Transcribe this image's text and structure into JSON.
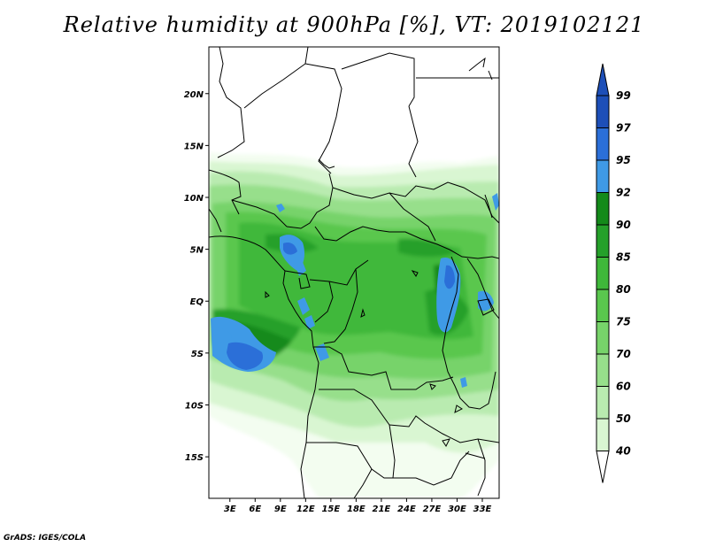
{
  "title": "Relative humidity at 900hPa [%], VT: 2019102121",
  "credit": "GrADS: IGES/COLA",
  "map": {
    "lat_labels": [
      {
        "lat": 20,
        "label": "20N"
      },
      {
        "lat": 15,
        "label": "15N"
      },
      {
        "lat": 10,
        "label": "10N"
      },
      {
        "lat": 5,
        "label": "5N"
      },
      {
        "lat": 0,
        "label": "EQ"
      },
      {
        "lat": -5,
        "label": "5S"
      },
      {
        "lat": -10,
        "label": "10S"
      },
      {
        "lat": -15,
        "label": "15S"
      }
    ],
    "lon_labels": [
      {
        "lon": 3,
        "label": "3E"
      },
      {
        "lon": 6,
        "label": "6E"
      },
      {
        "lon": 9,
        "label": "9E"
      },
      {
        "lon": 12,
        "label": "12E"
      },
      {
        "lon": 15,
        "label": "15E"
      },
      {
        "lon": 18,
        "label": "18E"
      },
      {
        "lon": 21,
        "label": "21E"
      },
      {
        "lon": 24,
        "label": "24E"
      },
      {
        "lon": 27,
        "label": "27E"
      },
      {
        "lon": 30,
        "label": "30E"
      },
      {
        "lon": 33,
        "label": "33E"
      }
    ],
    "lon_range": [
      0.5,
      35.0
    ],
    "lat_range": [
      -19.0,
      24.5
    ]
  },
  "colorbar": {
    "labels": [
      "99",
      "97",
      "95",
      "92",
      "90",
      "85",
      "80",
      "75",
      "70",
      "60",
      "50",
      "40"
    ],
    "colors": {
      "c40": "#f3fdf0",
      "c50": "#d9f6d2",
      "c60": "#b9ebb0",
      "c70": "#97df8b",
      "c75": "#77d36a",
      "c80": "#5ac74e",
      "c85": "#3fb83a",
      "c90": "#25a02a",
      "c92": "#148a1a",
      "c95": "#3f9ae6",
      "c97": "#2b6fd8",
      "c99": "#1d4fb8"
    }
  }
}
